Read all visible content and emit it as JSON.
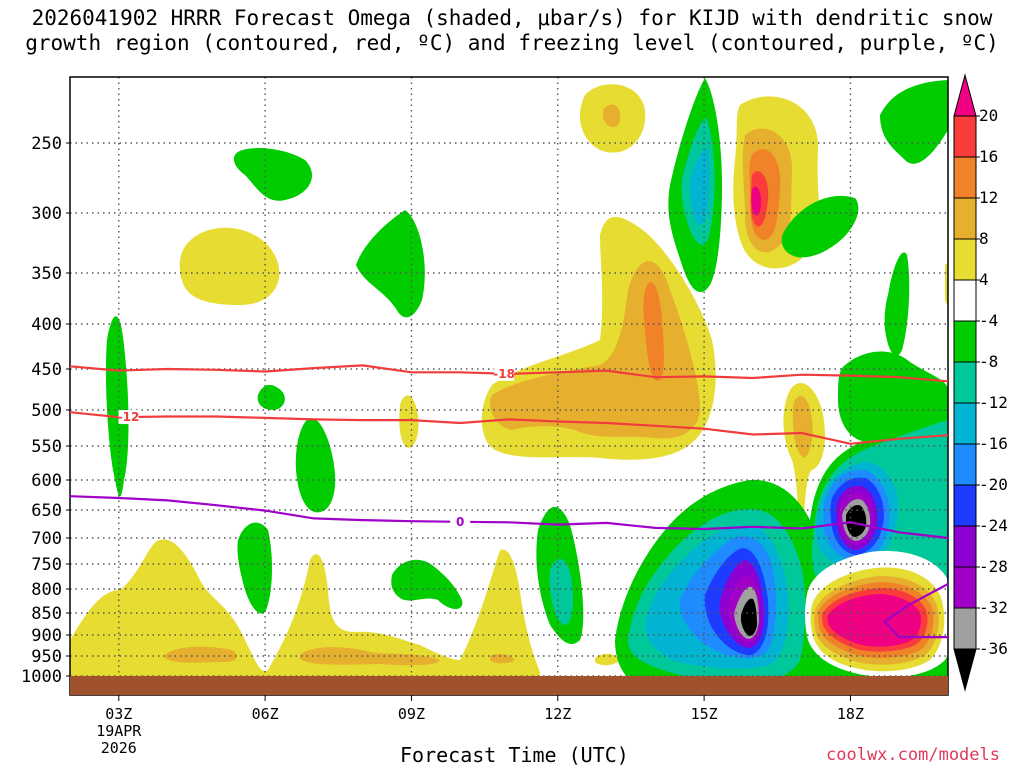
{
  "title": {
    "line1": "2026041902 HRRR Forecast Omega (shaded, μbar/s) for KIJD with dendritic snow",
    "line2": "growth region (contoured, red, ºC) and freezing level (contoured, purple, ºC)"
  },
  "xlabel": "Forecast Time (UTC)",
  "credit": "coolwx.com/models",
  "colors": {
    "green": "#00cc00",
    "teal": "#00c89a",
    "cyan": "#00b4d2",
    "lightblue": "#1e8cff",
    "blue": "#1e3cff",
    "purple": "#8c00d2",
    "violet": "#a000c8",
    "gray": "#a0a0a0",
    "black": "#000000",
    "yellow": "#e6dc32",
    "gold": "#e6af2d",
    "orange": "#f08228",
    "red": "#fa3c3c",
    "magenta": "#f00082",
    "ground": "#a0522d",
    "dgz_contour": "#f03c3c",
    "freezing_contour": "#a000c8"
  },
  "chart_data": {
    "type": "time-height cross section (shaded omega with contours)",
    "x_axis": {
      "label": "Forecast Time (UTC)",
      "range_hours": [
        2.0,
        20.0
      ],
      "ticks": [
        {
          "hour": 3,
          "label": "03Z",
          "sub1": "19APR",
          "sub2": "2026"
        },
        {
          "hour": 6,
          "label": "06Z"
        },
        {
          "hour": 9,
          "label": "09Z"
        },
        {
          "hour": 12,
          "label": "12Z"
        },
        {
          "hour": 15,
          "label": "15Z"
        },
        {
          "hour": 18,
          "label": "18Z"
        }
      ]
    },
    "y_axis": {
      "units": "hPa",
      "range_hpa": [
        1010,
        200
      ],
      "ticks": [
        250,
        300,
        350,
        400,
        450,
        500,
        550,
        600,
        650,
        700,
        750,
        800,
        850,
        900,
        950,
        1000
      ],
      "tick_labels": [
        "250",
        "300",
        "350",
        "400",
        "450",
        "500",
        "550",
        "600",
        "650",
        "700",
        "750",
        "800",
        "850",
        "900",
        "950",
        "1000"
      ]
    },
    "colorbar": {
      "units": "μbar/s",
      "labels": [
        "20",
        "16",
        "12",
        "8",
        "4",
        "-4",
        "-8",
        "-12",
        "-16",
        "-20",
        "-24",
        "-28",
        "-32",
        "-36"
      ],
      "bins": [
        {
          "range": "> 20",
          "color": "#f00082"
        },
        {
          "range": "16 to 20",
          "color": "#fa3c3c"
        },
        {
          "range": "12 to 16",
          "color": "#f08228"
        },
        {
          "range": "8 to 12",
          "color": "#e6af2d"
        },
        {
          "range": "4 to 8",
          "color": "#e6dc32"
        },
        {
          "range": "-4 to 4",
          "color": "#ffffff"
        },
        {
          "range": "-8 to -4",
          "color": "#00cc00"
        },
        {
          "range": "-12 to -8",
          "color": "#00c89a"
        },
        {
          "range": "-16 to -12",
          "color": "#00b4d2"
        },
        {
          "range": "-20 to -16",
          "color": "#1e8cff"
        },
        {
          "range": "-24 to -20",
          "color": "#1e3cff"
        },
        {
          "range": "-28 to -24",
          "color": "#8c00d2"
        },
        {
          "range": "-32 to -28",
          "color": "#a000c8"
        },
        {
          "range": "-36 to -32",
          "color": "#a0a0a0"
        },
        {
          "range": "< -36",
          "color": "#000000"
        }
      ]
    },
    "contours": [
      {
        "name": "-18 ºC isotherm (top of dendritic growth zone)",
        "label": "-18",
        "color": "#f03c3c",
        "label_at_hour": 10.9,
        "points": [
          [
            2.0,
            447
          ],
          [
            3.0,
            452
          ],
          [
            4.0,
            450
          ],
          [
            5.0,
            451
          ],
          [
            6.0,
            453
          ],
          [
            7.0,
            449
          ],
          [
            8.0,
            446
          ],
          [
            9.0,
            454
          ],
          [
            10.0,
            454
          ],
          [
            11.0,
            456
          ],
          [
            12.0,
            454
          ],
          [
            13.0,
            452
          ],
          [
            14.0,
            460
          ],
          [
            15.0,
            459
          ],
          [
            16.0,
            461
          ],
          [
            17.0,
            457
          ],
          [
            18.0,
            458
          ],
          [
            19.0,
            460
          ],
          [
            20.0,
            465
          ]
        ]
      },
      {
        "name": "-12 ºC isotherm (bottom of dendritic growth zone)",
        "label": "-12",
        "color": "#f03c3c",
        "label_at_hour": 3.2,
        "points": [
          [
            2.0,
            503
          ],
          [
            3.0,
            510
          ],
          [
            4.0,
            509
          ],
          [
            5.0,
            509
          ],
          [
            6.0,
            511
          ],
          [
            7.0,
            513
          ],
          [
            8.0,
            514
          ],
          [
            9.0,
            514
          ],
          [
            10.0,
            518
          ],
          [
            11.0,
            513
          ],
          [
            12.0,
            516
          ],
          [
            13.0,
            518
          ],
          [
            14.0,
            522
          ],
          [
            15.0,
            526
          ],
          [
            16.0,
            534
          ],
          [
            17.0,
            532
          ],
          [
            18.0,
            547
          ],
          [
            19.0,
            540
          ],
          [
            20.0,
            535
          ]
        ]
      },
      {
        "name": "0 ºC isotherm (freezing level)",
        "label": "0",
        "color": "#a000c8",
        "label_at_hour": 10.0,
        "points": [
          [
            2.0,
            627
          ],
          [
            3.0,
            630
          ],
          [
            4.0,
            634
          ],
          [
            5.0,
            642
          ],
          [
            6.0,
            651
          ],
          [
            7.0,
            665
          ],
          [
            8.0,
            668
          ],
          [
            9.0,
            670
          ],
          [
            10.0,
            671
          ],
          [
            11.0,
            672
          ],
          [
            12.0,
            676
          ],
          [
            13.0,
            673
          ],
          [
            14.0,
            682
          ],
          [
            15.0,
            684
          ],
          [
            16.0,
            680
          ],
          [
            17.0,
            683
          ],
          [
            18.0,
            672
          ],
          [
            19.0,
            690
          ],
          [
            20.0,
            700
          ]
        ]
      },
      {
        "name": "0 ºC isotherm (near-surface warm layer)",
        "label": "",
        "color": "#a000c8",
        "points": [
          [
            20.0,
            790
          ],
          [
            19.2,
            833
          ],
          [
            18.7,
            870
          ],
          [
            19.0,
            905
          ],
          [
            20.0,
            905
          ]
        ]
      }
    ],
    "summary": "Weak rising motion (green, -4 to -8) in patches aloft 02Z-12Z; strong low-level ascent develops after 13Z with cores below -36 μbar/s near 16Z (850 hPa) and 18Z (650 hPa); strong subsidence (>20 μbar/s) near 18-19Z at 850 hPa and near 16Z at 290 hPa."
  }
}
